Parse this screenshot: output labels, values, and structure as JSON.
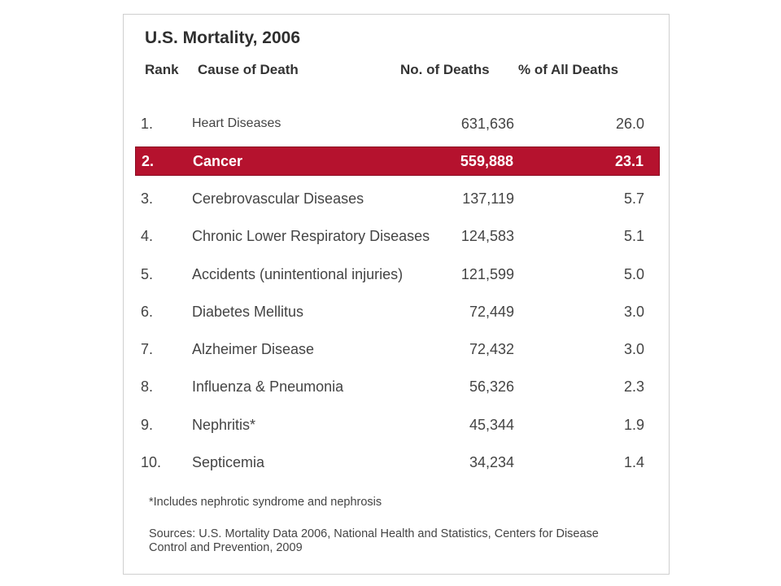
{
  "chart_data": {
    "type": "table",
    "title": "U.S. Mortality, 2006",
    "columns": [
      "Rank",
      "Cause of Death",
      "No. of Deaths",
      "% of All Deaths"
    ],
    "rows": [
      {
        "rank": "1.",
        "cause": "Heart Diseases",
        "deaths": "631,636",
        "pct": "26.0"
      },
      {
        "rank": "2.",
        "cause": "Cancer",
        "deaths": "559,888",
        "pct": "23.1"
      },
      {
        "rank": "3.",
        "cause": "Cerebrovascular Diseases",
        "deaths": "137,119",
        "pct": "5.7"
      },
      {
        "rank": "4.",
        "cause": "Chronic Lower Respiratory Diseases",
        "deaths": "124,583",
        "pct": "5.1"
      },
      {
        "rank": "5.",
        "cause": "Accidents (unintentional injuries)",
        "deaths": "121,599",
        "pct": "5.0"
      },
      {
        "rank": "6.",
        "cause": "Diabetes Mellitus",
        "deaths": "72,449",
        "pct": "3.0"
      },
      {
        "rank": "7.",
        "cause": "Alzheimer Disease",
        "deaths": "72,432",
        "pct": "3.0"
      },
      {
        "rank": "8.",
        "cause": "Influenza & Pneumonia",
        "deaths": "56,326",
        "pct": "2.3"
      },
      {
        "rank": "9.",
        "cause": "Nephritis*",
        "deaths": "45,344",
        "pct": "1.9"
      },
      {
        "rank": "10.",
        "cause": "Septicemia",
        "deaths": "34,234",
        "pct": "1.4"
      }
    ],
    "highlighted_row": 1,
    "footnote": "*Includes nephrotic syndrome and nephrosis",
    "sources": "Sources: U.S. Mortality Data 2006, National Health and Statistics, Centers for Disease Control and Prevention, 2009"
  },
  "colors": {
    "highlight": "#b5122e",
    "highlight_text": "#ffffff",
    "text": "#444444",
    "border": "#cfcfcf"
  }
}
